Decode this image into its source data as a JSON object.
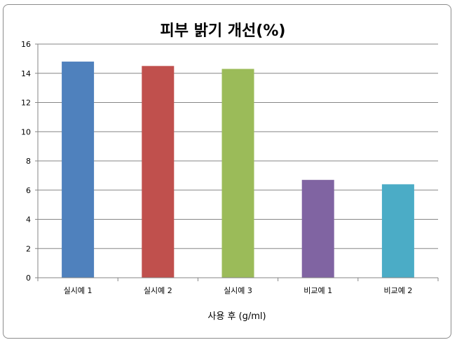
{
  "chart_data": {
    "type": "bar",
    "title": "피부 밝기 개선(%)",
    "xlabel": "사용 후 (g/ml)",
    "ylabel": "",
    "categories": [
      "실시예 1",
      "실시예 2",
      "실시예 3",
      "비교예 1",
      "비교예 2"
    ],
    "values": [
      14.8,
      14.5,
      14.3,
      6.7,
      6.4
    ],
    "colors": [
      "#4f81bd",
      "#c0504d",
      "#9bbb59",
      "#8064a2",
      "#4bacc6"
    ],
    "ylim": [
      0,
      16
    ],
    "yticks": [
      "0",
      "2",
      "4",
      "6",
      "8",
      "10",
      "12",
      "14",
      "16"
    ],
    "grid": true,
    "legend": "none"
  }
}
